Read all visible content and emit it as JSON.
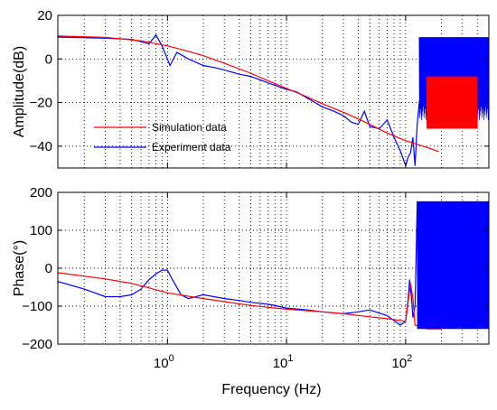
{
  "chart_data": [
    {
      "type": "line",
      "x_scale": "log",
      "xlim": [
        0.12,
        500
      ],
      "ylim": [
        -50,
        20
      ],
      "ylabel": "Amplitude(dB)",
      "xlabel": "",
      "y_ticks": [
        -40,
        -20,
        0,
        20
      ],
      "y_tick_labels": [
        "−40",
        "−20",
        "0",
        "20"
      ],
      "grid": true,
      "legend_position": "bottom-left",
      "series": [
        {
          "name": "Simulation data",
          "color": "#ff0000",
          "x": [
            0.12,
            0.3,
            0.6,
            1,
            1.5,
            2,
            3,
            5,
            7,
            10,
            15,
            20,
            30,
            40,
            50,
            70,
            100,
            150,
            190
          ],
          "y": [
            10.5,
            9.9,
            8.3,
            6,
            3.5,
            1.5,
            -2,
            -6.5,
            -10,
            -13.5,
            -17.5,
            -20.5,
            -24.5,
            -27.5,
            -30,
            -34,
            -37.5,
            -40.5,
            -42.5
          ]
        },
        {
          "name": "Experiment data",
          "color": "#0000ff",
          "x": [
            0.12,
            0.3,
            0.5,
            0.7,
            0.8,
            0.9,
            1.05,
            1.2,
            1.5,
            2,
            2.5,
            3,
            4,
            5,
            7,
            10,
            12,
            15,
            20,
            25,
            30,
            35,
            40,
            45,
            50,
            60,
            70,
            80,
            90,
            100,
            105,
            110,
            115,
            120,
            125,
            130,
            140,
            150,
            170,
            200,
            250,
            300,
            400,
            500
          ],
          "y": [
            10,
            9.5,
            9,
            7,
            11,
            6,
            -3,
            3,
            0,
            -3,
            -4,
            -5,
            -7,
            -8,
            -11,
            -14,
            -15,
            -18,
            -22,
            -24,
            -26,
            -29,
            -30,
            -24,
            -31,
            -32,
            -28,
            -36,
            -42,
            -49,
            -45,
            -43,
            -36,
            -49,
            -30,
            -20,
            -10,
            0,
            5,
            5,
            4,
            3,
            2,
            1
          ]
        }
      ]
    },
    {
      "type": "line",
      "x_scale": "log",
      "xlim": [
        0.12,
        500
      ],
      "ylim": [
        -200,
        200
      ],
      "ylabel": "Phase(°)",
      "xlabel": "Frequency (Hz)",
      "y_ticks": [
        -200,
        -100,
        0,
        100,
        200
      ],
      "y_tick_labels": [
        "−200",
        "−100",
        "0",
        "100",
        "200"
      ],
      "x_ticks": [
        1,
        10,
        100
      ],
      "x_tick_labels": [
        [
          "10",
          "0"
        ],
        [
          "10",
          "1"
        ],
        [
          "10",
          "2"
        ]
      ],
      "grid": true,
      "series": [
        {
          "name": "Simulation data",
          "color": "#ff0000",
          "x": [
            0.12,
            0.3,
            0.5,
            0.7,
            1,
            2,
            3,
            5,
            7,
            10,
            20,
            30,
            50,
            70,
            100,
            110,
            115,
            120,
            150,
            200
          ],
          "y": [
            -12,
            -28,
            -40,
            -52,
            -65,
            -80,
            -88,
            -98,
            -103,
            -108,
            -115,
            -120,
            -128,
            -133,
            -140,
            -40,
            -80,
            -150,
            -160,
            -160
          ]
        },
        {
          "name": "Experiment data",
          "color": "#0000ff",
          "x": [
            0.12,
            0.2,
            0.3,
            0.4,
            0.5,
            0.6,
            0.7,
            0.8,
            0.9,
            1,
            1.1,
            1.3,
            1.5,
            2,
            3,
            4,
            5,
            7,
            10,
            15,
            20,
            30,
            40,
            50,
            70,
            90,
            100,
            105,
            108,
            112,
            115,
            120,
            125,
            500
          ],
          "y": [
            -35,
            -55,
            -75,
            -75,
            -70,
            -55,
            -30,
            -15,
            -5,
            -5,
            -30,
            -70,
            -80,
            -70,
            -80,
            -85,
            -90,
            -95,
            -105,
            -110,
            -115,
            -120,
            -115,
            -110,
            -125,
            -150,
            -140,
            -80,
            -30,
            -80,
            -130,
            -100,
            175,
            175
          ]
        }
      ]
    }
  ]
}
